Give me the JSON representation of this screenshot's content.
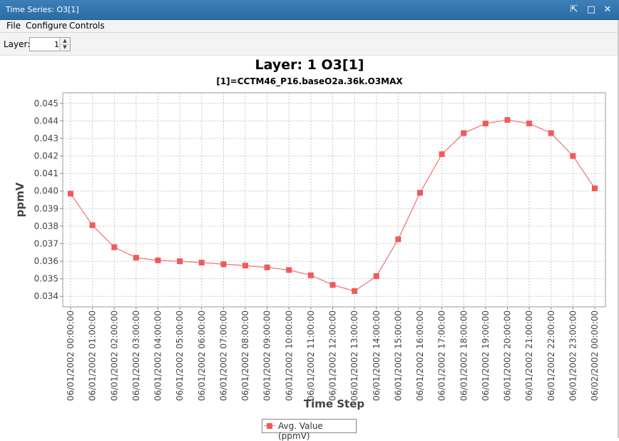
{
  "window": {
    "title": "Time Series: O3[1]",
    "buttons": {
      "pin": "⇱",
      "maximize": "□",
      "close": "✕"
    }
  },
  "menu": [
    "File",
    "Configure",
    "Controls"
  ],
  "toolbar": {
    "layer_label": "Layer:",
    "layer_value": "1"
  },
  "chart": {
    "title": "Layer: 1 O3[1]",
    "subtitle": "[1]=CCTM46_P16.baseO2a.36k.O3MAX",
    "ylabel": "ppmV",
    "xlabel": "Time Step",
    "legend": "Avg. Value (ppmV)"
  },
  "chart_data": {
    "type": "line",
    "title": "Layer: 1 O3[1]",
    "subtitle": "[1]=CCTM46_P16.baseO2a.36k.O3MAX",
    "xlabel": "Time Step",
    "ylabel": "ppmV",
    "ylim": [
      0.0334,
      0.0456
    ],
    "yticks": [
      "0.034",
      "0.035",
      "0.036",
      "0.037",
      "0.038",
      "0.039",
      "0.040",
      "0.041",
      "0.042",
      "0.043",
      "0.044",
      "0.045"
    ],
    "grid": true,
    "legend_position": "bottom",
    "color": "#f05a5a",
    "categories": [
      "06/01/2002 00:00:00",
      "06/01/2002 01:00:00",
      "06/01/2002 02:00:00",
      "06/01/2002 03:00:00",
      "06/01/2002 04:00:00",
      "06/01/2002 05:00:00",
      "06/01/2002 06:00:00",
      "06/01/2002 07:00:00",
      "06/01/2002 08:00:00",
      "06/01/2002 09:00:00",
      "06/01/2002 10:00:00",
      "06/01/2002 11:00:00",
      "06/01/2002 12:00:00",
      "06/01/2002 13:00:00",
      "06/01/2002 14:00:00",
      "06/01/2002 15:00:00",
      "06/01/2002 16:00:00",
      "06/01/2002 17:00:00",
      "06/01/2002 18:00:00",
      "06/01/2002 19:00:00",
      "06/01/2002 20:00:00",
      "06/01/2002 21:00:00",
      "06/01/2002 22:00:00",
      "06/01/2002 23:00:00",
      "06/02/2002 00:00:00"
    ],
    "series": [
      {
        "name": "Avg. Value (ppmV)",
        "values": [
          0.03985,
          0.03805,
          0.0368,
          0.0362,
          0.03605,
          0.036,
          0.03592,
          0.03583,
          0.03575,
          0.03565,
          0.0355,
          0.0352,
          0.03465,
          0.0343,
          0.03515,
          0.03725,
          0.0399,
          0.0421,
          0.0433,
          0.04385,
          0.04405,
          0.04385,
          0.0433,
          0.042,
          0.04015
        ]
      }
    ]
  }
}
